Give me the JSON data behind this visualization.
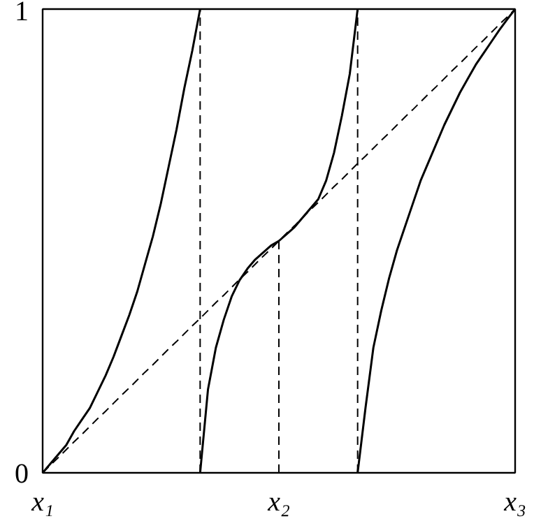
{
  "chart_data": {
    "type": "line",
    "ylim": [
      0,
      1
    ],
    "yticks": [
      0,
      1
    ],
    "grid": false,
    "marker": "none",
    "categories": [
      "x₁",
      null,
      null,
      null,
      null,
      null,
      null,
      null,
      null,
      null,
      null,
      null,
      null,
      null,
      null,
      null,
      null,
      null,
      null,
      null,
      null,
      null,
      null,
      null,
      null,
      null,
      null,
      null,
      null,
      null,
      "x₂",
      null,
      null,
      null,
      null,
      null,
      null,
      null,
      null,
      null,
      null,
      null,
      null,
      null,
      null,
      null,
      null,
      null,
      null,
      null,
      null,
      null,
      null,
      null,
      null,
      null,
      null,
      null,
      null,
      null,
      "x₃"
    ],
    "series": [
      {
        "color": "#000000",
        "line_style": "solid",
        "values": [
          0,
          0.02,
          0.04,
          0.06,
          0.09,
          0.115,
          0.14,
          0.175,
          0.21,
          0.25,
          0.295,
          0.34,
          0.39,
          0.45,
          0.51,
          0.58,
          0.66,
          0.74,
          0.83,
          0.91,
          1,
          null,
          null,
          null,
          null,
          null,
          null,
          null,
          null,
          null,
          null,
          null,
          null,
          null,
          null,
          null,
          null,
          null,
          null,
          null,
          null,
          null,
          null,
          null,
          null,
          null,
          null,
          null,
          null,
          null,
          null,
          null,
          null,
          null,
          null,
          null,
          null,
          null,
          null,
          null,
          null
        ]
      },
      {
        "color": "#000000",
        "line_style": "solid",
        "values": [
          null,
          null,
          null,
          null,
          null,
          null,
          null,
          null,
          null,
          null,
          null,
          null,
          null,
          null,
          null,
          null,
          null,
          null,
          null,
          null,
          0,
          0.18,
          0.27,
          0.33,
          0.38,
          0.415,
          0.44,
          0.46,
          0.475,
          0.49,
          0.5,
          0.515,
          0.53,
          0.55,
          0.57,
          0.59,
          0.63,
          0.69,
          0.77,
          0.86,
          1,
          null,
          null,
          null,
          null,
          null,
          null,
          null,
          null,
          null,
          null,
          null,
          null,
          null,
          null,
          null,
          null,
          null,
          null,
          null,
          null
        ]
      },
      {
        "color": "#000000",
        "line_style": "solid",
        "values": [
          null,
          null,
          null,
          null,
          null,
          null,
          null,
          null,
          null,
          null,
          null,
          null,
          null,
          null,
          null,
          null,
          null,
          null,
          null,
          null,
          null,
          null,
          null,
          null,
          null,
          null,
          null,
          null,
          null,
          null,
          null,
          null,
          null,
          null,
          null,
          null,
          null,
          null,
          null,
          null,
          0,
          0.14,
          0.27,
          0.35,
          0.42,
          0.48,
          0.53,
          0.58,
          0.63,
          0.67,
          0.71,
          0.75,
          0.785,
          0.82,
          0.85,
          0.88,
          0.905,
          0.93,
          0.955,
          0.978,
          1
        ]
      },
      {
        "color": "#000000",
        "line_style": "dashed",
        "values": [
          0,
          0.017,
          0.033,
          0.05,
          0.067,
          0.083,
          0.1,
          0.117,
          0.133,
          0.15,
          0.167,
          0.183,
          0.2,
          0.217,
          0.233,
          0.25,
          0.267,
          0.283,
          0.3,
          0.317,
          0.333,
          0.35,
          0.367,
          0.383,
          0.4,
          0.417,
          0.433,
          0.45,
          0.467,
          0.483,
          0.5,
          0.517,
          0.533,
          0.55,
          0.567,
          0.583,
          0.6,
          0.617,
          0.633,
          0.65,
          0.667,
          0.683,
          0.7,
          0.717,
          0.733,
          0.75,
          0.767,
          0.783,
          0.8,
          0.817,
          0.833,
          0.85,
          0.867,
          0.883,
          0.9,
          0.917,
          0.933,
          0.95,
          0.967,
          0.983,
          1
        ]
      }
    ]
  }
}
